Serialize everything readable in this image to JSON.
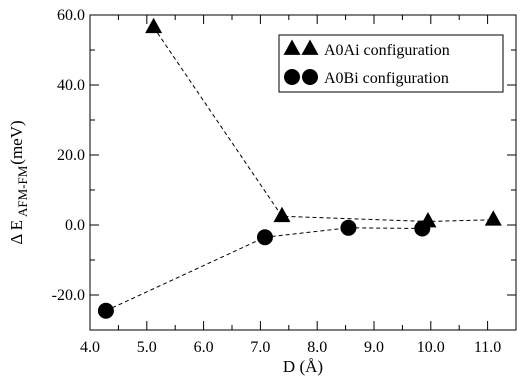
{
  "chart_data": {
    "type": "scatter",
    "xlabel": "D (Å)",
    "ylabel": {
      "main": "Δ E",
      "subscript": "AFM-FM",
      "unit": "(meV)"
    },
    "xlim": [
      4.0,
      11.5
    ],
    "ylim": [
      -30.0,
      60.0
    ],
    "x_ticks": [
      4.0,
      5.0,
      6.0,
      7.0,
      8.0,
      9.0,
      10.0,
      11.0
    ],
    "x_tick_labels": [
      "4.0",
      "5.0",
      "6.0",
      "7.0",
      "8.0",
      "9.0",
      "10.0",
      "11.0"
    ],
    "y_ticks": [
      -20.0,
      0.0,
      20.0,
      40.0,
      60.0
    ],
    "y_tick_labels": [
      "-20.0",
      "0.0",
      "20.0",
      "40.0",
      "60.0"
    ],
    "y_minor_ticks": [
      -30.0,
      -10.0,
      10.0,
      30.0,
      50.0
    ],
    "grid": false,
    "legend_position": "top-right",
    "series": [
      {
        "name": "A0Ai configuration",
        "marker": "triangle",
        "line": "dashed",
        "x": [
          5.12,
          7.38,
          9.95,
          11.1
        ],
        "y": [
          56.5,
          2.5,
          1.0,
          1.5
        ]
      },
      {
        "name": "A0Bi configuration",
        "marker": "circle",
        "line": "dashed",
        "x": [
          4.28,
          7.08,
          8.55,
          9.85
        ],
        "y": [
          -24.5,
          -3.5,
          -0.8,
          -1.0
        ]
      }
    ]
  }
}
